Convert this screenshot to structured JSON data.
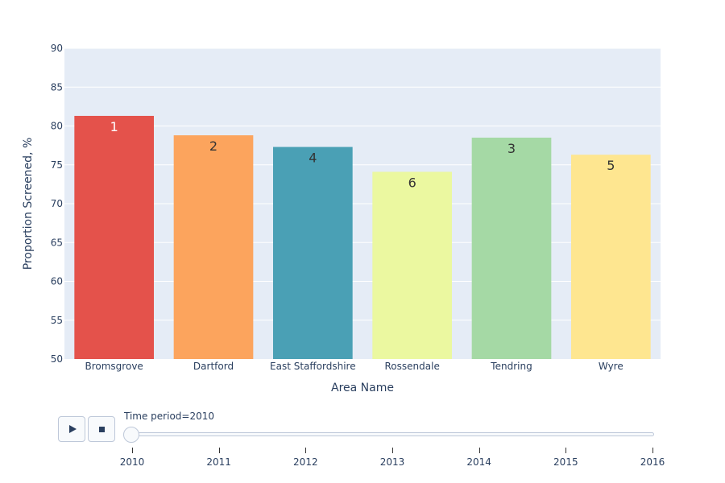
{
  "chart_data": {
    "type": "bar",
    "categories": [
      "Bromsgrove",
      "Dartford",
      "East Staffordshire",
      "Rossendale",
      "Tendring",
      "Wyre"
    ],
    "values": [
      81.3,
      78.8,
      77.3,
      74.1,
      78.5,
      76.3
    ],
    "bar_labels": [
      "1",
      "2",
      "4",
      "6",
      "3",
      "5"
    ],
    "colors": [
      "#e4524b",
      "#fca45d",
      "#4aa0b5",
      "#ebf8a0",
      "#a5d9a5",
      "#fee690"
    ],
    "label_colors": [
      "#ffffff",
      "#333333",
      "#333333",
      "#333333",
      "#333333",
      "#333333"
    ],
    "xlabel": "Area Name",
    "ylabel": "Proportion Screened, %",
    "ylim": [
      50,
      90
    ],
    "yticks": [
      50,
      55,
      60,
      65,
      70,
      75,
      80,
      85,
      90
    ],
    "grid": true,
    "plot_bg": "#e5ecf6"
  },
  "slider": {
    "label": "Time period=2010",
    "current": "2010",
    "steps": [
      "2010",
      "2011",
      "2012",
      "2013",
      "2014",
      "2015",
      "2016"
    ]
  },
  "controls": {
    "play_icon": "play-icon",
    "stop_icon": "stop-icon"
  }
}
